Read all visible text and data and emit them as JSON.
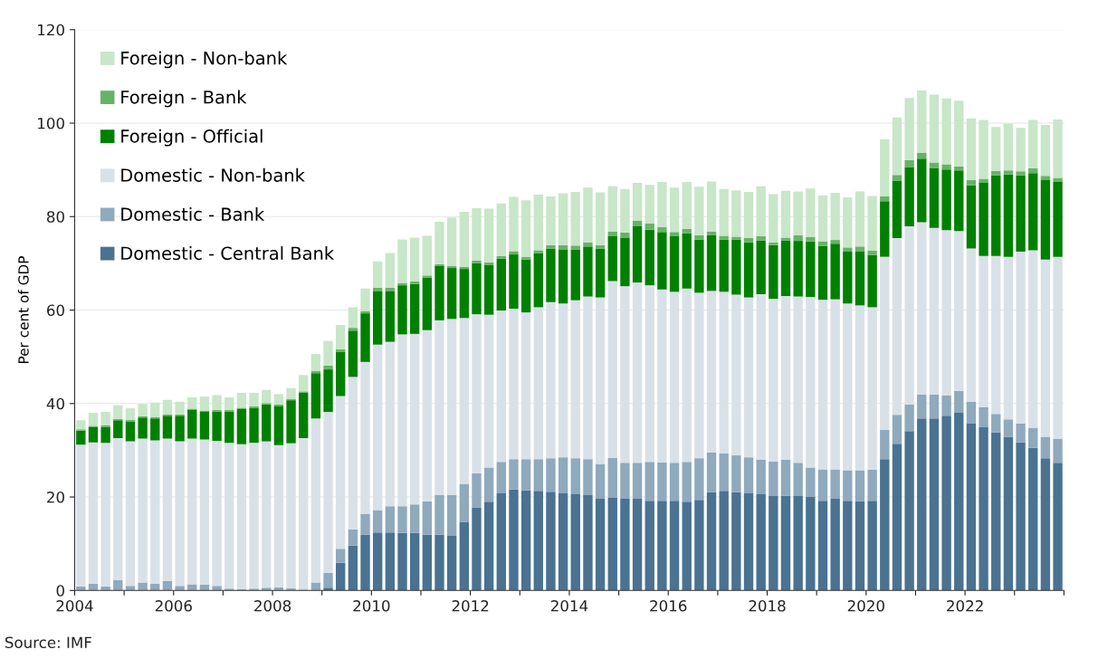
{
  "chart_data": {
    "type": "bar",
    "stacked": true,
    "ylabel": "Per cent of GDP",
    "annotations": [
      "Source: IMF"
    ],
    "x": [
      2004.125,
      2004.375,
      2004.625,
      2004.875,
      2005.125,
      2005.375,
      2005.625,
      2005.875,
      2006.125,
      2006.375,
      2006.625,
      2006.875,
      2007.125,
      2007.375,
      2007.625,
      2007.875,
      2008.125,
      2008.375,
      2008.625,
      2008.875,
      2009.125,
      2009.375,
      2009.625,
      2009.875,
      2010.125,
      2010.375,
      2010.625,
      2010.875,
      2011.125,
      2011.375,
      2011.625,
      2011.875,
      2012.125,
      2012.375,
      2012.625,
      2012.875,
      2013.125,
      2013.375,
      2013.625,
      2013.875,
      2014.125,
      2014.375,
      2014.625,
      2014.875,
      2015.125,
      2015.375,
      2015.625,
      2015.875,
      2016.125,
      2016.375,
      2016.625,
      2016.875,
      2017.125,
      2017.375,
      2017.625,
      2017.875,
      2018.125,
      2018.375,
      2018.625,
      2018.875,
      2019.125,
      2019.375,
      2019.625,
      2019.875,
      2020.125,
      2020.375,
      2020.625,
      2020.875,
      2021.125,
      2021.375,
      2021.625,
      2021.875,
      2022.125,
      2022.375,
      2022.625,
      2022.875,
      2023.125,
      2023.375,
      2023.625,
      2023.875
    ],
    "xlim": [
      2004,
      2024
    ],
    "xticks": [
      2004,
      {
        "value": 2005,
        "label": null
      },
      2006,
      {
        "value": 2007,
        "label": null
      },
      2008,
      {
        "value": 2009,
        "label": null
      },
      2010,
      {
        "value": 2011,
        "label": null
      },
      2012,
      {
        "value": 2013,
        "label": null
      },
      2014,
      {
        "value": 2015,
        "label": null
      },
      2016,
      {
        "value": 2017,
        "label": null
      },
      2018,
      {
        "value": 2019,
        "label": null
      },
      2020,
      {
        "value": 2021,
        "label": null
      },
      2022,
      {
        "value": 2023,
        "label": null
      },
      {
        "value": 2024,
        "label": null
      }
    ],
    "ylim": [
      0,
      120
    ],
    "yticks": [
      0,
      20,
      40,
      60,
      80,
      100,
      120
    ],
    "grid": "y",
    "legend": "top left",
    "series": [
      {
        "name": "Domestic - Central Bank",
        "color": "#4a7291",
        "values": [
          0,
          0,
          0,
          0,
          0,
          0,
          0,
          0,
          0,
          0,
          0,
          0,
          0,
          0,
          0,
          0,
          0,
          0,
          0,
          0,
          0.6,
          5.9,
          9.6,
          11.9,
          12.4,
          12.4,
          12.3,
          12.3,
          11.9,
          11.9,
          11.7,
          14.7,
          17.8,
          19.0,
          20.8,
          21.6,
          21.4,
          21.3,
          21.1,
          20.8,
          20.6,
          20.4,
          19.6,
          19.8,
          19.6,
          19.6,
          19.2,
          19.2,
          19.2,
          19.0,
          19.4,
          21.0,
          21.3,
          21.0,
          20.8,
          20.6,
          20.2,
          20.3,
          20.2,
          20.0,
          19.2,
          19.6,
          19.2,
          19.1,
          19.2,
          28.1,
          31.4,
          34.1,
          36.8,
          36.8,
          37.4,
          38.0,
          35.7,
          35.0,
          33.8,
          32.9,
          31.7,
          30.5,
          28.3,
          27.3
        ]
      },
      {
        "name": "Domestic - Bank",
        "color": "#8fa9bd",
        "values": [
          0.9,
          1.4,
          0.9,
          2.2,
          1.0,
          1.7,
          1.4,
          2.0,
          1.0,
          1.3,
          1.2,
          1.0,
          0.4,
          0.3,
          0.4,
          0.6,
          0.7,
          0.5,
          0.2,
          1.7,
          3.2,
          3.0,
          3.5,
          4.5,
          4.8,
          5.6,
          5.7,
          6.1,
          7.2,
          8.5,
          8.7,
          8.1,
          7.3,
          7.3,
          6.7,
          6.5,
          6.7,
          6.8,
          7.2,
          7.7,
          7.7,
          7.7,
          7.5,
          8.6,
          7.7,
          7.7,
          8.3,
          8.2,
          8.1,
          8.5,
          8.9,
          8.5,
          8.0,
          7.9,
          7.7,
          7.4,
          7.4,
          7.7,
          7.1,
          6.3,
          6.7,
          6.3,
          6.5,
          6.6,
          6.6,
          6.3,
          6.2,
          5.7,
          5.1,
          5.1,
          4.3,
          4.7,
          4.7,
          4.3,
          4.0,
          3.7,
          4.0,
          4.3,
          4.6,
          5.1
        ]
      },
      {
        "name": "Domestic - Non-bank",
        "color": "#d9e1e8",
        "values": [
          30.3,
          30.3,
          30.7,
          30.4,
          30.9,
          30.8,
          30.7,
          30.5,
          30.9,
          31.2,
          31.1,
          31.0,
          31.2,
          31.0,
          31.2,
          31.3,
          30.4,
          31.0,
          32.4,
          35.1,
          34.4,
          32.7,
          32.6,
          32.5,
          35.4,
          35.2,
          36.8,
          36.5,
          36.6,
          37.4,
          37.7,
          35.5,
          34.0,
          32.7,
          32.4,
          32.2,
          31.4,
          32.5,
          33.4,
          32.9,
          33.8,
          34.8,
          35.6,
          37.8,
          37.8,
          38.6,
          37.8,
          37.0,
          36.6,
          37.1,
          35.4,
          34.6,
          34.6,
          34.4,
          34.2,
          35.4,
          34.8,
          35.0,
          35.6,
          36.5,
          36.3,
          36.4,
          35.7,
          35.3,
          34.8,
          37.0,
          37.8,
          38.1,
          36.9,
          35.7,
          35.4,
          34.2,
          32.8,
          32.3,
          33.8,
          34.8,
          36.8,
          38.0,
          37.9,
          39.0
        ]
      },
      {
        "name": "Foreign - Official",
        "color": "#008000",
        "values": [
          3.0,
          3.2,
          3.4,
          3.8,
          4.3,
          4.5,
          4.7,
          4.9,
          5.5,
          6.1,
          5.9,
          6.3,
          6.7,
          7.5,
          7.5,
          7.9,
          8.4,
          9.2,
          9.7,
          9.7,
          9.1,
          9.4,
          9.9,
          10.4,
          11.5,
          10.9,
          10.5,
          10.7,
          11.2,
          11.6,
          10.9,
          10.5,
          10.9,
          10.6,
          11.1,
          11.6,
          11.3,
          11.6,
          11.4,
          11.6,
          10.8,
          10.7,
          10.4,
          9.7,
          10.3,
          12.0,
          11.9,
          12.3,
          11.9,
          11.8,
          11.4,
          11.9,
          11.2,
          11.8,
          11.8,
          11.5,
          11.5,
          11.9,
          11.9,
          11.9,
          11.5,
          11.9,
          11.1,
          11.5,
          11.2,
          11.9,
          12.3,
          12.7,
          13.6,
          12.8,
          13.0,
          13.0,
          13.5,
          15.6,
          17.2,
          17.6,
          16.3,
          16.5,
          17.0,
          16.0
        ]
      },
      {
        "name": "Foreign - Bank",
        "color": "#66b366",
        "values": [
          0.3,
          0.3,
          0.3,
          0.3,
          0.3,
          0.3,
          0.3,
          0.3,
          0.3,
          0.3,
          0.3,
          0.3,
          0.3,
          0.3,
          0.3,
          0.3,
          0.3,
          0.3,
          0.3,
          0.5,
          0.8,
          0.6,
          0.6,
          0.5,
          0.7,
          0.7,
          0.5,
          0.5,
          0.5,
          0.4,
          0.4,
          0.4,
          0.6,
          0.6,
          0.6,
          0.7,
          0.6,
          0.6,
          0.8,
          0.9,
          0.9,
          0.9,
          0.8,
          0.9,
          1.2,
          1.2,
          1.3,
          1.1,
          0.9,
          1.0,
          0.9,
          0.8,
          0.8,
          0.6,
          0.9,
          0.9,
          0.6,
          0.6,
          1.2,
          0.9,
          1.0,
          0.8,
          0.9,
          1.1,
          0.9,
          1.0,
          1.2,
          1.5,
          1.2,
          1.2,
          1.1,
          0.8,
          1.1,
          0.9,
          1.0,
          0.9,
          0.9,
          1.0,
          0.9,
          0.9
        ]
      },
      {
        "name": "Foreign - Non-bank",
        "color": "#c8e6c8",
        "values": [
          1.9,
          2.8,
          2.9,
          2.9,
          2.5,
          2.6,
          3.1,
          3.1,
          2.7,
          2.4,
          3.0,
          3.2,
          2.7,
          3.2,
          2.9,
          2.8,
          2.2,
          2.3,
          3.5,
          3.6,
          5.3,
          5.2,
          4.4,
          4.8,
          5.6,
          7.4,
          9.3,
          9.4,
          8.5,
          9.1,
          10.4,
          11.8,
          11.2,
          11.5,
          11.2,
          11.6,
          12.1,
          11.9,
          10.4,
          11.1,
          11.5,
          11.7,
          11.3,
          9.7,
          9.3,
          8.1,
          8.3,
          9.6,
          9.5,
          10.0,
          10.4,
          10.7,
          10.0,
          9.9,
          9.9,
          10.7,
          10.3,
          10.0,
          9.4,
          10.4,
          9.8,
          10.1,
          10.7,
          11.8,
          11.7,
          12.2,
          12.3,
          13.3,
          13.4,
          14.5,
          14.1,
          14.1,
          13.2,
          12.6,
          9.4,
          10.0,
          9.3,
          10.4,
          10.9,
          12.5
        ]
      }
    ]
  }
}
